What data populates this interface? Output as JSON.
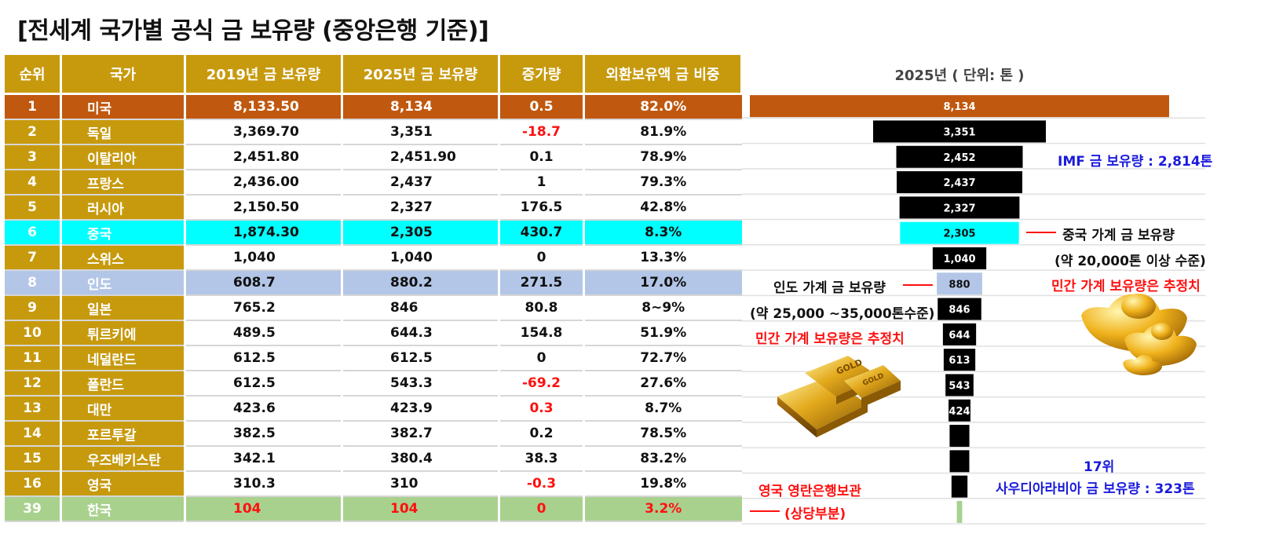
{
  "title": "[전세계 국가별 공식 금 보유량 (중앙은행 기준)]",
  "table": {
    "headers": [
      "순위",
      "국가",
      "2019년 금 보유량",
      "2025년 금 보유량",
      "증가량",
      "외환보유액 금 비중"
    ],
    "rows": [
      {
        "rank": "1",
        "country": "미국",
        "y2019": "8,133.50",
        "y2025": "8,134",
        "increase": "0.5",
        "share": "82.0%"
      },
      {
        "rank": "2",
        "country": "독일",
        "y2019": "3,369.70",
        "y2025": "3,351",
        "increase": "-18.7",
        "share": "81.9%"
      },
      {
        "rank": "3",
        "country": "이탈리아",
        "y2019": "2,451.80",
        "y2025": "2,451.90",
        "increase": "0.1",
        "share": "78.9%"
      },
      {
        "rank": "4",
        "country": "프랑스",
        "y2019": "2,436.00",
        "y2025": "2,437",
        "increase": "1",
        "share": "79.3%"
      },
      {
        "rank": "5",
        "country": "러시아",
        "y2019": "2,150.50",
        "y2025": "2,327",
        "increase": "176.5",
        "share": "42.8%"
      },
      {
        "rank": "6",
        "country": "중국",
        "y2019": "1,874.30",
        "y2025": "2,305",
        "increase": "430.7",
        "share": "8.3%"
      },
      {
        "rank": "7",
        "country": "스위스",
        "y2019": "1,040",
        "y2025": "1,040",
        "increase": "0",
        "share": "13.3%"
      },
      {
        "rank": "8",
        "country": "인도",
        "y2019": "608.7",
        "y2025": "880.2",
        "increase": "271.5",
        "share": "17.0%"
      },
      {
        "rank": "9",
        "country": "일본",
        "y2019": "765.2",
        "y2025": "846",
        "increase": "80.8",
        "share": "8~9%"
      },
      {
        "rank": "10",
        "country": "튀르키에",
        "y2019": "489.5",
        "y2025": "644.3",
        "increase": "154.8",
        "share": "51.9%"
      },
      {
        "rank": "11",
        "country": "네덜란드",
        "y2019": "612.5",
        "y2025": "612.5",
        "increase": "0",
        "share": "72.7%"
      },
      {
        "rank": "12",
        "country": "폴란드",
        "y2019": "612.5",
        "y2025": "543.3",
        "increase": "-69.2",
        "share": "27.6%"
      },
      {
        "rank": "13",
        "country": "대만",
        "y2019": "423.6",
        "y2025": "423.9",
        "increase": "0.3",
        "share": "8.7%"
      },
      {
        "rank": "14",
        "country": "포르투갈",
        "y2019": "382.5",
        "y2025": "382.7",
        "increase": "0.2",
        "share": "78.5%"
      },
      {
        "rank": "15",
        "country": "우즈베키스탄",
        "y2019": "342.1",
        "y2025": "380.4",
        "increase": "38.3",
        "share": "83.2%"
      },
      {
        "rank": "16",
        "country": "영국",
        "y2019": "310.3",
        "y2025": "310",
        "increase": "-0.3",
        "share": "19.8%"
      },
      {
        "rank": "39",
        "country": "한국",
        "y2019": "104",
        "y2025": "104",
        "increase": "0",
        "share": "3.2%"
      }
    ]
  },
  "chart_data": {
    "type": "bar",
    "orientation": "horizontal-centered",
    "title": "2025년 ( 단위: 톤 )",
    "categories": [
      "미국",
      "독일",
      "이탈리아",
      "프랑스",
      "러시아",
      "중국",
      "스위스",
      "인도",
      "일본",
      "튀르키에",
      "네덜란드",
      "폴란드",
      "대만",
      "포르투갈",
      "우즈베키스탄",
      "영국",
      "한국"
    ],
    "values": [
      8134,
      3351,
      2452,
      2437,
      2327,
      2305,
      1040,
      880,
      846,
      644,
      613,
      543,
      424,
      383,
      380,
      310,
      104
    ],
    "data_labels": [
      "8,134",
      "3,351",
      "2,452",
      "2,437",
      "2,327",
      "2,305",
      "1,040",
      "880",
      "846",
      "644",
      "613",
      "543",
      "424",
      "",
      "",
      "",
      ""
    ],
    "colors": [
      "#c0580f",
      "#000000",
      "#000000",
      "#000000",
      "#000000",
      "#00ffff",
      "#000000",
      "#b3c6e7",
      "#000000",
      "#000000",
      "#000000",
      "#000000",
      "#000000",
      "#000000",
      "#000000",
      "#000000",
      "#a9d18e"
    ],
    "label_colors": [
      "#ffffff",
      "#ffffff",
      "#ffffff",
      "#ffffff",
      "#ffffff",
      "#111111",
      "#ffffff",
      "#111111",
      "#ffffff",
      "#ffffff",
      "#ffffff",
      "#ffffff",
      "#ffffff",
      "#ffffff",
      "#ffffff",
      "#ffffff",
      "#ffffff"
    ],
    "xlim": [
      0,
      8134
    ]
  },
  "annotations": {
    "imf": "IMF 금 보유량 : 2,814톤",
    "china_household": "중국 가계 금 보유량",
    "china_estimate": "(약 20,000톤 이상 수준)",
    "india_household": "인도 가계 금 보유량",
    "india_estimate": "(약 25,000 ~35,000톤수준)",
    "private_estimate_right": "민간 가계 보유량은 추정치",
    "private_estimate_left": "민간 가계 보유량은 추정치",
    "uk_bank": "영국 영란은행보관",
    "uk_portion": "(상당부분)",
    "saudi_rank": "17위",
    "saudi": "사우디아라비아 금 보유량 : 323톤"
  },
  "icons": {
    "gold_bars": "gold-bars-icon",
    "gold_ingots": "gold-ingot-icon",
    "gold_bar_label": "GOLD"
  }
}
